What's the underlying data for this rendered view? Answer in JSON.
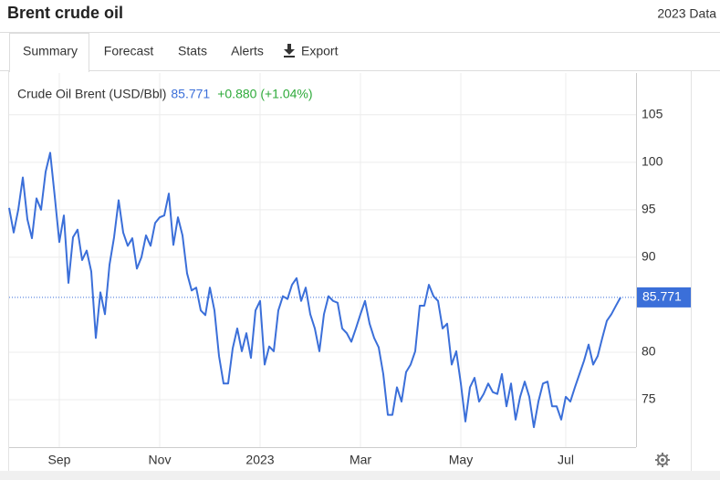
{
  "header": {
    "title": "Brent crude oil",
    "badge": "2023 Data"
  },
  "tabs": [
    "Summary",
    "Forecast",
    "Stats",
    "Alerts",
    "Export"
  ],
  "chart_data": {
    "type": "line",
    "series": [
      {
        "name": "Crude Oil Brent (USD/Bbl)",
        "color": "#3b6fd9",
        "values": [
          95.2,
          92.6,
          95,
          98.4,
          94,
          92,
          96.2,
          95,
          99,
          101,
          96.4,
          91.6,
          94.4,
          87.3,
          92.1,
          92.9,
          89.7,
          90.7,
          88.5,
          81.5,
          86.3,
          84,
          89.2,
          92.1,
          96,
          92.6,
          91.2,
          92,
          88.8,
          90,
          92.3,
          91.2,
          93.6,
          94.2,
          94.4,
          96.7,
          91.3,
          94.2,
          92.3,
          88.3,
          86.5,
          86.8,
          84.4,
          83.9,
          86.8,
          84.4,
          79.6,
          76.7,
          76.7,
          80.4,
          82.5,
          80.1,
          82,
          79.4,
          84.4,
          85.4,
          78.7,
          80.6,
          80.1,
          84.4,
          85.9,
          85.6,
          87.1,
          87.8,
          85.4,
          86.8,
          84,
          82.5,
          80.1,
          84,
          85.9,
          85.4,
          85.2,
          82.5,
          82,
          81.1,
          82.5,
          84,
          85.4,
          83,
          81.5,
          80.5,
          77.7,
          73.4,
          73.4,
          76.3,
          74.8,
          77.9,
          78.7,
          80.1,
          84.9,
          84.9,
          87.1,
          85.9,
          85.4,
          82.5,
          83,
          78.7,
          80.1,
          76.7,
          72.7,
          76.3,
          77.3,
          74.8,
          75.6,
          76.7,
          75.8,
          75.6,
          77.7,
          74.3,
          76.7,
          72.9,
          75.3,
          76.9,
          75.3,
          72.1,
          74.8,
          76.7,
          76.9,
          74.3,
          74.3,
          72.9,
          75.3,
          74.8,
          76.3,
          77.7,
          79.1,
          80.8,
          78.7,
          79.6,
          81.5,
          83.3,
          84,
          84.9,
          85.771
        ]
      }
    ],
    "change": "+0.880 (+1.04%)",
    "change_color": "#2eaa3a",
    "categories": [
      null,
      null,
      null,
      null,
      null,
      null,
      null,
      null,
      null,
      null,
      null,
      "Sep",
      null,
      null,
      null,
      null,
      null,
      null,
      null,
      null,
      null,
      null,
      null,
      null,
      null,
      null,
      null,
      null,
      null,
      null,
      null,
      null,
      null,
      "Nov",
      null,
      null,
      null,
      null,
      null,
      null,
      null,
      null,
      null,
      null,
      null,
      null,
      null,
      null,
      null,
      null,
      null,
      null,
      null,
      null,
      null,
      "2023",
      null,
      null,
      null,
      null,
      null,
      null,
      null,
      null,
      null,
      null,
      null,
      null,
      null,
      null,
      null,
      null,
      null,
      null,
      null,
      null,
      null,
      "Mar",
      null,
      null,
      null,
      null,
      null,
      null,
      null,
      null,
      null,
      null,
      null,
      null,
      null,
      null,
      null,
      null,
      null,
      null,
      null,
      null,
      null,
      "May",
      null,
      null,
      null,
      null,
      null,
      null,
      null,
      null,
      null,
      null,
      null,
      null,
      null,
      null,
      null,
      null,
      null,
      null,
      null,
      null,
      null,
      null,
      "Jul",
      null,
      null,
      null,
      null,
      null,
      null,
      null,
      null,
      null,
      null,
      null,
      null
    ],
    "ylim": [
      70,
      109.4
    ],
    "yticks": [
      75,
      80,
      90,
      95,
      100,
      105
    ],
    "grid": true
  }
}
